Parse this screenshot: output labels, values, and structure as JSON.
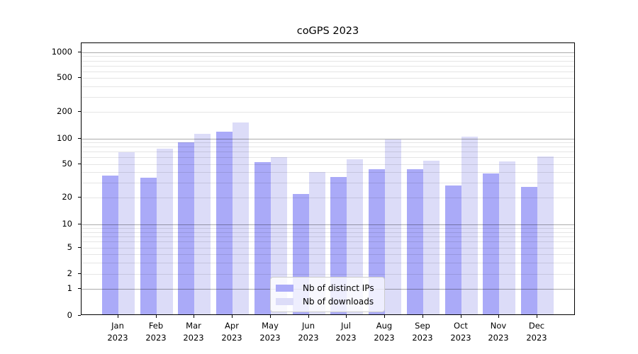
{
  "title": "coGPS 2023",
  "colors": {
    "background": "#ffffff",
    "axis": "#000000",
    "grid_major": "#ababab",
    "grid_minor": "#e6e6e6",
    "ips_bar": "#aaaaf8",
    "downloads_bar": "#dcdcf8"
  },
  "chart_data": {
    "type": "bar",
    "title": "coGPS 2023",
    "xlabel": "",
    "ylabel": "",
    "yscale": "symlog",
    "ylim": [
      0,
      1300
    ],
    "grid": "horizontal, major at decades (1,10,100,1000), minor elsewhere",
    "legend_position": "lower center inside plot",
    "yticks": [
      0,
      1,
      2,
      5,
      10,
      20,
      50,
      100,
      200,
      500,
      1000
    ],
    "minor_grid_values": [
      2,
      3,
      4,
      5,
      6,
      7,
      8,
      9,
      20,
      30,
      40,
      50,
      60,
      70,
      80,
      90,
      200,
      300,
      400,
      500,
      600,
      700,
      800,
      900
    ],
    "major_grid_values": [
      1,
      10,
      100,
      1000
    ],
    "categories": [
      {
        "month": "Jan",
        "year": "2023"
      },
      {
        "month": "Feb",
        "year": "2023"
      },
      {
        "month": "Mar",
        "year": "2023"
      },
      {
        "month": "Apr",
        "year": "2023"
      },
      {
        "month": "May",
        "year": "2023"
      },
      {
        "month": "Jun",
        "year": "2023"
      },
      {
        "month": "Jul",
        "year": "2023"
      },
      {
        "month": "Aug",
        "year": "2023"
      },
      {
        "month": "Sep",
        "year": "2023"
      },
      {
        "month": "Oct",
        "year": "2023"
      },
      {
        "month": "Nov",
        "year": "2023"
      },
      {
        "month": "Dec",
        "year": "2023"
      }
    ],
    "series": [
      {
        "name": "Nb of distinct IPs",
        "key": "ips",
        "color": "#aaaaf8",
        "values": [
          35,
          33,
          87,
          114,
          51,
          21,
          34,
          42,
          42,
          27,
          37,
          26
        ]
      },
      {
        "name": "Nb of downloads",
        "key": "downloads",
        "color": "#dcdcf8",
        "values": [
          67,
          73,
          108,
          145,
          58,
          39,
          55,
          93,
          53,
          101,
          52,
          59
        ]
      }
    ]
  }
}
